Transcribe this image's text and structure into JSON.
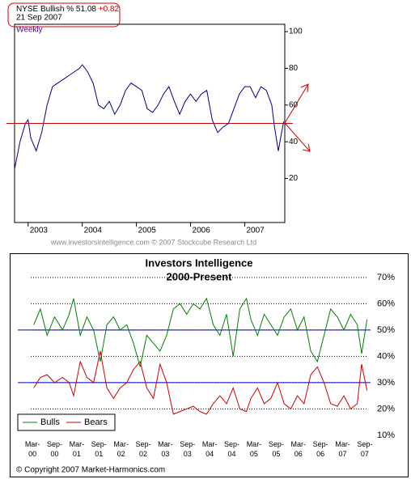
{
  "chart_data": [
    {
      "type": "line",
      "title": "NYSE Bullish %",
      "last_value": "51.08",
      "change": "+0.82",
      "date": "21 Sep 2007",
      "period": "Weekly",
      "footer": "www.investorsintelligence.com  © 2007 Stockcube Research Ltd",
      "xlim": [
        2002.75,
        2007.74
      ],
      "xticks": [
        2003,
        2004,
        2005,
        2006,
        2007
      ],
      "ylim": [
        -4,
        104
      ],
      "yticks": [
        20,
        40,
        60,
        80,
        100
      ],
      "hlines": [
        {
          "value": 50,
          "color": "#cc0000"
        }
      ],
      "series": [
        {
          "color": "#00008b",
          "x": [
            2002.75,
            2002.85,
            2002.95,
            2003.0,
            2003.05,
            2003.15,
            2003.25,
            2003.35,
            2003.45,
            2003.55,
            2003.65,
            2003.75,
            2003.85,
            2003.95,
            2004.0,
            2004.1,
            2004.2,
            2004.3,
            2004.4,
            2004.5,
            2004.6,
            2004.7,
            2004.8,
            2004.9,
            2005.0,
            2005.1,
            2005.2,
            2005.3,
            2005.4,
            2005.5,
            2005.6,
            2005.7,
            2005.8,
            2005.9,
            2006.0,
            2006.1,
            2006.2,
            2006.3,
            2006.4,
            2006.5,
            2006.6,
            2006.7,
            2006.8,
            2006.9,
            2007.0,
            2007.1,
            2007.2,
            2007.3,
            2007.4,
            2007.5,
            2007.55,
            2007.62,
            2007.68,
            2007.72
          ],
          "values": [
            25,
            40,
            50,
            52,
            42,
            35,
            45,
            60,
            70,
            72,
            74,
            76,
            78,
            80,
            82,
            78,
            72,
            60,
            58,
            62,
            55,
            60,
            68,
            72,
            70,
            68,
            58,
            56,
            60,
            66,
            70,
            62,
            55,
            62,
            66,
            62,
            66,
            68,
            52,
            45,
            48,
            50,
            58,
            66,
            70,
            70,
            64,
            70,
            68,
            60,
            48,
            35,
            45,
            51.08
          ]
        }
      ]
    },
    {
      "type": "line",
      "title": "Investors Intelligence",
      "subtitle": "2000-Present",
      "footer": "© Copyright 2007 Market-Harmonics.com",
      "legend": "lower left",
      "xlim": [
        1999.84,
        2007.8
      ],
      "xticks": [
        {
          "value": 2000.17,
          "label": "Mar-00"
        },
        {
          "value": 2000.67,
          "label": "Sep-00"
        },
        {
          "value": 2001.17,
          "label": "Mar-01"
        },
        {
          "value": 2001.67,
          "label": "Sep-01"
        },
        {
          "value": 2002.17,
          "label": "Mar-02"
        },
        {
          "value": 2002.67,
          "label": "Sep-02"
        },
        {
          "value": 2003.17,
          "label": "Mar-03"
        },
        {
          "value": 2003.67,
          "label": "Sep-03"
        },
        {
          "value": 2004.17,
          "label": "Mar-04"
        },
        {
          "value": 2004.67,
          "label": "Sep-04"
        },
        {
          "value": 2005.17,
          "label": "Mar-05"
        },
        {
          "value": 2005.67,
          "label": "Sep-05"
        },
        {
          "value": 2006.17,
          "label": "Mar-06"
        },
        {
          "value": 2006.67,
          "label": "Sep-06"
        },
        {
          "value": 2007.17,
          "label": "Mar-07"
        },
        {
          "value": 2007.67,
          "label": "Sep-07"
        }
      ],
      "ylim": [
        7.8,
        78.6
      ],
      "yticks": [
        {
          "value": 10,
          "label": "10%"
        },
        {
          "value": 20,
          "label": "20%"
        },
        {
          "value": 30,
          "label": "30%"
        },
        {
          "value": 40,
          "label": "40%"
        },
        {
          "value": 50,
          "label": "50%"
        },
        {
          "value": 60,
          "label": "60%"
        },
        {
          "value": 70,
          "label": "70%"
        }
      ],
      "grid": "dotted",
      "hlines": [
        {
          "value": 50,
          "color": "#0000cc"
        },
        {
          "value": 30,
          "color": "#0000cc"
        }
      ],
      "x": [
        2000.2,
        2000.35,
        2000.5,
        2000.67,
        2000.85,
        2001.0,
        2001.1,
        2001.25,
        2001.4,
        2001.55,
        2001.7,
        2001.85,
        2002.0,
        2002.15,
        2002.3,
        2002.45,
        2002.6,
        2002.75,
        2002.9,
        2003.05,
        2003.2,
        2003.35,
        2003.5,
        2003.65,
        2003.8,
        2003.95,
        2004.1,
        2004.25,
        2004.4,
        2004.55,
        2004.7,
        2004.85,
        2005.0,
        2005.1,
        2005.25,
        2005.4,
        2005.55,
        2005.7,
        2005.85,
        2006.0,
        2006.15,
        2006.3,
        2006.45,
        2006.6,
        2006.75,
        2006.9,
        2007.05,
        2007.2,
        2007.35,
        2007.5,
        2007.6,
        2007.72
      ],
      "series": [
        {
          "name": "Bulls",
          "color": "#008000",
          "values": [
            52,
            58,
            48,
            55,
            50,
            56,
            62,
            48,
            55,
            50,
            38,
            52,
            55,
            50,
            52,
            45,
            36,
            48,
            45,
            42,
            48,
            58,
            60,
            56,
            60,
            58,
            62,
            52,
            48,
            56,
            40,
            58,
            62,
            54,
            48,
            56,
            52,
            48,
            55,
            58,
            50,
            55,
            42,
            38,
            48,
            58,
            55,
            50,
            56,
            52,
            41,
            54
          ]
        },
        {
          "name": "Bears",
          "color": "#cc0000",
          "values": [
            28,
            32,
            33,
            30,
            32,
            30,
            25,
            38,
            32,
            30,
            42,
            28,
            24,
            28,
            30,
            35,
            38,
            28,
            24,
            37,
            30,
            18,
            19,
            20,
            21,
            19,
            18,
            22,
            25,
            22,
            28,
            20,
            19,
            24,
            28,
            22,
            24,
            30,
            22,
            20,
            25,
            22,
            33,
            36,
            30,
            22,
            21,
            25,
            20,
            22,
            37,
            27
          ]
        }
      ]
    }
  ]
}
